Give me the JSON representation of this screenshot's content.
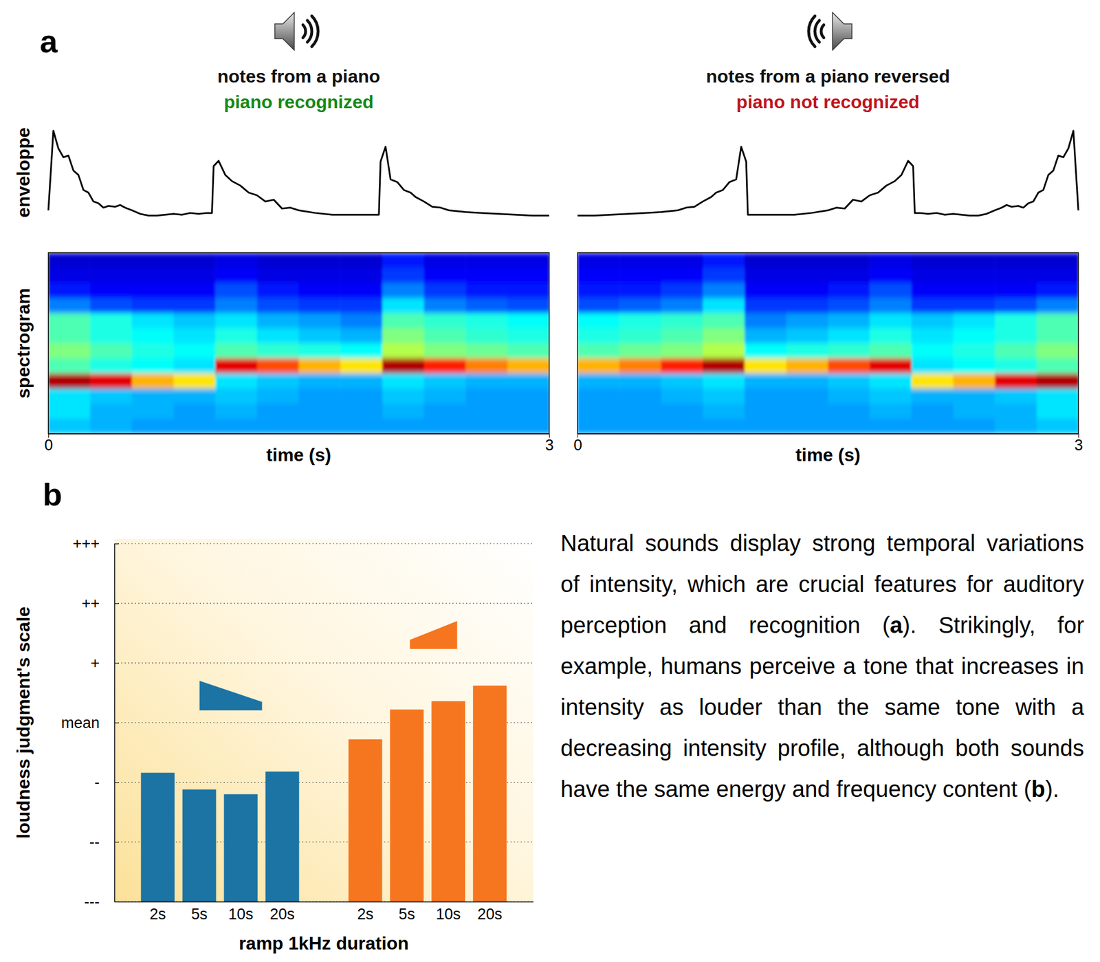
{
  "panel_labels": [
    "a",
    "b"
  ],
  "caption": "Natural sounds display strong temporal variations of intensity, which are crucial features for auditory perception and recognition (a). Strikingly, for example, humans perceive a tone that increases in intensity as louder than the same tone with a decreasing intensity profile, although both sounds have the same energy and frequency content (b).",
  "chart_data": [
    {
      "type": "line",
      "title": "notes from a piano",
      "subtitle": "piano recognized",
      "ylabel": "enveloppe",
      "x": [
        0,
        0.03,
        0.06,
        0.09,
        0.12,
        0.15,
        0.18,
        0.21,
        0.24,
        0.27,
        0.3,
        0.33,
        0.36,
        0.4,
        0.43,
        0.46,
        0.5,
        0.55,
        0.6,
        0.65,
        0.7,
        0.75,
        0.8,
        0.85,
        0.9,
        0.95,
        0.98,
        0.99,
        1.02,
        1.06,
        1.1,
        1.15,
        1.2,
        1.25,
        1.3,
        1.35,
        1.4,
        1.45,
        1.5,
        1.6,
        1.7,
        1.8,
        1.9,
        1.98,
        1.99,
        2.02,
        2.05,
        2.09,
        2.13,
        2.17,
        2.2,
        2.25,
        2.3,
        2.35,
        2.4,
        2.5,
        2.6,
        2.7,
        2.8,
        2.9,
        3
      ],
      "values": [
        0.1,
        1.0,
        0.8,
        0.7,
        0.72,
        0.55,
        0.5,
        0.33,
        0.3,
        0.2,
        0.18,
        0.13,
        0.15,
        0.14,
        0.16,
        0.13,
        0.1,
        0.06,
        0.04,
        0.04,
        0.05,
        0.06,
        0.05,
        0.07,
        0.06,
        0.07,
        0.07,
        0.6,
        0.66,
        0.5,
        0.43,
        0.38,
        0.3,
        0.27,
        0.2,
        0.22,
        0.12,
        0.13,
        0.1,
        0.07,
        0.05,
        0.05,
        0.05,
        0.05,
        0.65,
        0.82,
        0.45,
        0.42,
        0.33,
        0.3,
        0.25,
        0.2,
        0.14,
        0.13,
        0.1,
        0.08,
        0.07,
        0.06,
        0.05,
        0.04,
        0.04
      ],
      "xlim": [
        0,
        3
      ],
      "ylim": [
        0,
        1.05
      ],
      "tick_labels": false,
      "color": "#000000"
    },
    {
      "type": "heatmap",
      "ylabel": "spectrogram",
      "xlabel": "time (s)",
      "xlim": [
        0,
        3
      ],
      "xticks": [
        0,
        3
      ],
      "tick_labels": "x",
      "bins": [
        0,
        0.25,
        0.5,
        0.75,
        1,
        1.25,
        1.5,
        1.75,
        2,
        2.25,
        2.5,
        2.75,
        3
      ],
      "zlim": [
        0,
        1
      ],
      "cells": [
        [
          0.08,
          0.08,
          0.08,
          0.08,
          0.1,
          0.08,
          0.08,
          0.08,
          0.15,
          0.1,
          0.1,
          0.1
        ],
        [
          0.1,
          0.1,
          0.1,
          0.1,
          0.12,
          0.1,
          0.1,
          0.1,
          0.18,
          0.12,
          0.12,
          0.12
        ],
        [
          0.15,
          0.12,
          0.12,
          0.12,
          0.2,
          0.15,
          0.12,
          0.12,
          0.25,
          0.18,
          0.15,
          0.15
        ],
        [
          0.25,
          0.2,
          0.18,
          0.18,
          0.25,
          0.2,
          0.18,
          0.18,
          0.35,
          0.25,
          0.22,
          0.2
        ],
        [
          0.45,
          0.4,
          0.35,
          0.32,
          0.35,
          0.3,
          0.28,
          0.25,
          0.45,
          0.42,
          0.4,
          0.38
        ],
        [
          0.45,
          0.4,
          0.38,
          0.35,
          0.4,
          0.35,
          0.32,
          0.3,
          0.5,
          0.45,
          0.42,
          0.4
        ],
        [
          0.5,
          0.45,
          0.4,
          0.38,
          0.45,
          0.42,
          0.4,
          0.38,
          0.55,
          0.5,
          0.48,
          0.45
        ],
        [
          0.45,
          0.4,
          0.38,
          0.35,
          0.9,
          0.8,
          0.7,
          0.65,
          0.95,
          0.85,
          0.75,
          0.7
        ],
        [
          0.95,
          0.9,
          0.7,
          0.65,
          0.35,
          0.32,
          0.3,
          0.3,
          0.35,
          0.32,
          0.3,
          0.3
        ],
        [
          0.35,
          0.32,
          0.3,
          0.3,
          0.32,
          0.3,
          0.28,
          0.28,
          0.32,
          0.3,
          0.28,
          0.28
        ],
        [
          0.35,
          0.3,
          0.3,
          0.28,
          0.3,
          0.28,
          0.28,
          0.28,
          0.3,
          0.28,
          0.28,
          0.28
        ],
        [
          0.32,
          0.3,
          0.28,
          0.28,
          0.28,
          0.28,
          0.28,
          0.28,
          0.28,
          0.28,
          0.28,
          0.28
        ]
      ]
    },
    {
      "type": "line",
      "title": "notes from a piano reversed",
      "subtitle": "piano not recognized",
      "x": [
        0,
        0.1,
        0.2,
        0.3,
        0.4,
        0.5,
        0.6,
        0.65,
        0.7,
        0.75,
        0.8,
        0.83,
        0.87,
        0.91,
        0.95,
        0.98,
        1.01,
        1.02,
        1.1,
        1.2,
        1.3,
        1.4,
        1.5,
        1.55,
        1.6,
        1.65,
        1.7,
        1.75,
        1.8,
        1.85,
        1.9,
        1.94,
        1.98,
        2.01,
        2.02,
        2.05,
        2.1,
        2.15,
        2.2,
        2.25,
        2.3,
        2.35,
        2.4,
        2.45,
        2.5,
        2.54,
        2.57,
        2.6,
        2.64,
        2.67,
        2.7,
        2.73,
        2.76,
        2.79,
        2.82,
        2.85,
        2.88,
        2.91,
        2.94,
        2.97,
        3
      ],
      "values": [
        0.04,
        0.04,
        0.05,
        0.06,
        0.07,
        0.08,
        0.1,
        0.13,
        0.14,
        0.2,
        0.25,
        0.3,
        0.33,
        0.42,
        0.45,
        0.82,
        0.65,
        0.05,
        0.05,
        0.05,
        0.05,
        0.07,
        0.1,
        0.13,
        0.12,
        0.22,
        0.2,
        0.27,
        0.3,
        0.38,
        0.43,
        0.5,
        0.66,
        0.6,
        0.07,
        0.07,
        0.06,
        0.07,
        0.05,
        0.06,
        0.05,
        0.04,
        0.04,
        0.06,
        0.1,
        0.13,
        0.16,
        0.14,
        0.15,
        0.13,
        0.18,
        0.2,
        0.3,
        0.33,
        0.5,
        0.55,
        0.72,
        0.7,
        0.8,
        1.0,
        0.1
      ],
      "xlim": [
        0,
        3
      ],
      "ylim": [
        0,
        1.05
      ],
      "tick_labels": false,
      "color": "#000000"
    },
    {
      "type": "heatmap",
      "xlabel": "time (s)",
      "xlim": [
        0,
        3
      ],
      "xticks": [
        0,
        3
      ],
      "tick_labels": "x",
      "bins": [
        0,
        0.25,
        0.5,
        0.75,
        1,
        1.25,
        1.5,
        1.75,
        2,
        2.25,
        2.5,
        2.75,
        3
      ],
      "zlim": [
        0,
        1
      ],
      "cells": [
        [
          0.1,
          0.1,
          0.1,
          0.15,
          0.08,
          0.08,
          0.08,
          0.1,
          0.08,
          0.08,
          0.08,
          0.08
        ],
        [
          0.12,
          0.12,
          0.12,
          0.18,
          0.1,
          0.1,
          0.1,
          0.12,
          0.1,
          0.1,
          0.1,
          0.1
        ],
        [
          0.15,
          0.15,
          0.18,
          0.25,
          0.12,
          0.12,
          0.15,
          0.2,
          0.12,
          0.12,
          0.12,
          0.15
        ],
        [
          0.2,
          0.22,
          0.25,
          0.35,
          0.18,
          0.18,
          0.2,
          0.25,
          0.18,
          0.18,
          0.2,
          0.25
        ],
        [
          0.38,
          0.4,
          0.42,
          0.45,
          0.25,
          0.28,
          0.3,
          0.35,
          0.32,
          0.35,
          0.4,
          0.45
        ],
        [
          0.4,
          0.42,
          0.45,
          0.5,
          0.3,
          0.32,
          0.35,
          0.4,
          0.35,
          0.38,
          0.4,
          0.45
        ],
        [
          0.45,
          0.48,
          0.5,
          0.55,
          0.38,
          0.4,
          0.42,
          0.45,
          0.38,
          0.4,
          0.45,
          0.5
        ],
        [
          0.7,
          0.75,
          0.85,
          0.95,
          0.65,
          0.7,
          0.8,
          0.9,
          0.35,
          0.38,
          0.4,
          0.45
        ],
        [
          0.3,
          0.3,
          0.32,
          0.35,
          0.3,
          0.3,
          0.32,
          0.35,
          0.65,
          0.7,
          0.9,
          0.95
        ],
        [
          0.28,
          0.28,
          0.3,
          0.32,
          0.28,
          0.28,
          0.3,
          0.32,
          0.3,
          0.3,
          0.32,
          0.35
        ],
        [
          0.28,
          0.28,
          0.28,
          0.3,
          0.28,
          0.28,
          0.28,
          0.3,
          0.28,
          0.3,
          0.3,
          0.35
        ],
        [
          0.28,
          0.28,
          0.28,
          0.28,
          0.28,
          0.28,
          0.28,
          0.28,
          0.28,
          0.28,
          0.3,
          0.32
        ]
      ]
    },
    {
      "type": "bar",
      "ylabel": "loudness judgment's scale",
      "xlabel": "ramp 1kHz duration",
      "categories": [
        "2s",
        "5s",
        "10s",
        "20s",
        "2s",
        "5s",
        "10s",
        "20s"
      ],
      "values": [
        -0.84,
        -1.12,
        -1.2,
        -0.82,
        -0.28,
        0.22,
        0.36,
        0.62
      ],
      "colors": [
        "#1b74a4",
        "#1b74a4",
        "#1b74a4",
        "#1b74a4",
        "#f5761f",
        "#f5761f",
        "#f5761f",
        "#f5761f"
      ],
      "ylim": [
        -3,
        3
      ],
      "yticks": [
        {
          "value": -3,
          "label": "---"
        },
        {
          "value": -2,
          "label": "--"
        },
        {
          "value": -1,
          "label": "-"
        },
        {
          "value": 0,
          "label": "mean"
        },
        {
          "value": 1,
          "label": "+"
        },
        {
          "value": 2,
          "label": "++"
        },
        {
          "value": 3,
          "label": "+++"
        }
      ],
      "grid": true
    }
  ]
}
